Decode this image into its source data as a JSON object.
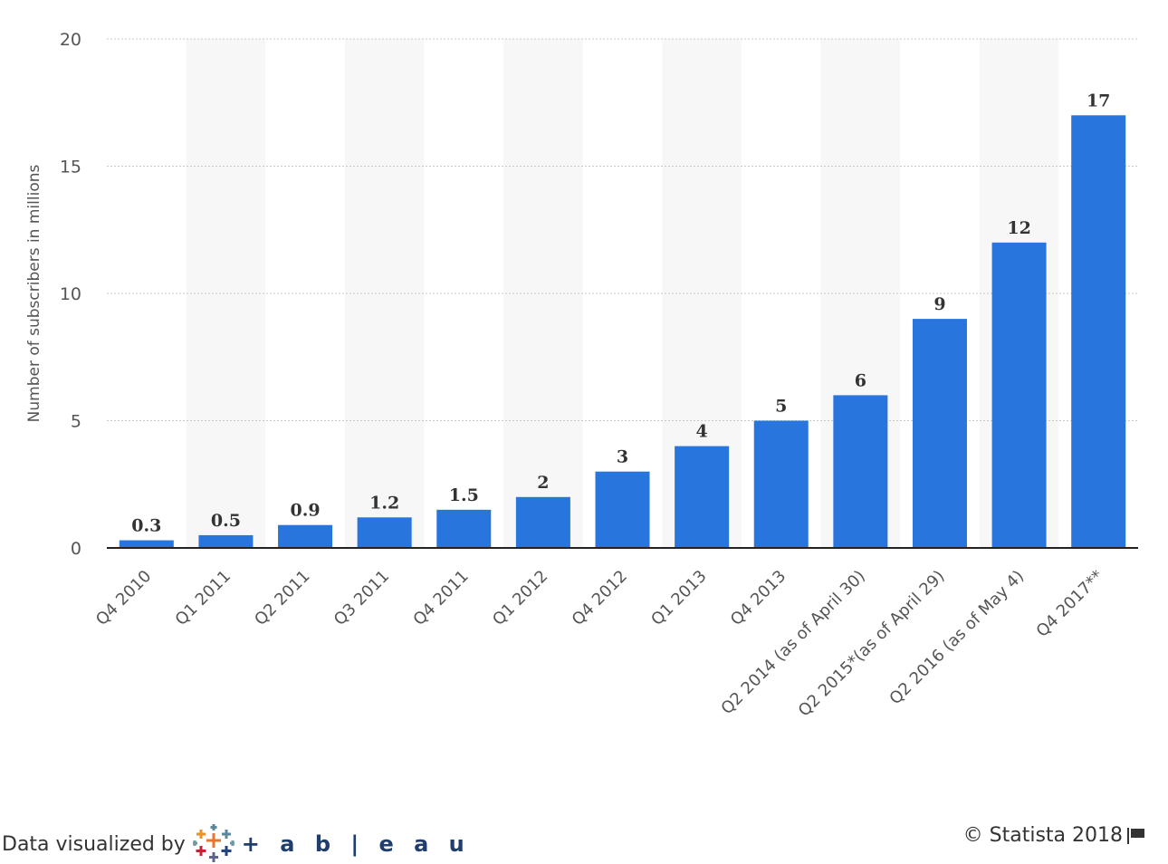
{
  "chart_data": {
    "type": "bar",
    "ylabel": "Number of subscribers in millions",
    "xlabel": "",
    "ylim": [
      0,
      20
    ],
    "yticks": [
      0,
      5,
      10,
      15,
      20
    ],
    "grid": true,
    "categories": [
      "Q4 2010",
      "Q1 2011",
      "Q2 2011",
      "Q3 2011",
      "Q4 2011",
      "Q1 2012",
      "Q4 2012",
      "Q1 2013",
      "Q4 2013",
      "Q2 2014 (as of April 30)",
      "Q2 2015*(as of April 29)",
      "Q2 2016 (as of May 4)",
      "Q4 2017**"
    ],
    "values": [
      0.3,
      0.5,
      0.9,
      1.2,
      1.5,
      2,
      3,
      4,
      5,
      6,
      9,
      12,
      17
    ],
    "bar_color": "#2876dd"
  },
  "footer": {
    "visualized_by": "Data visualized by",
    "tableau_logo": "+ a b | e a u",
    "copyright": "© Statista 2018",
    "flag_icon": "flag-icon"
  }
}
